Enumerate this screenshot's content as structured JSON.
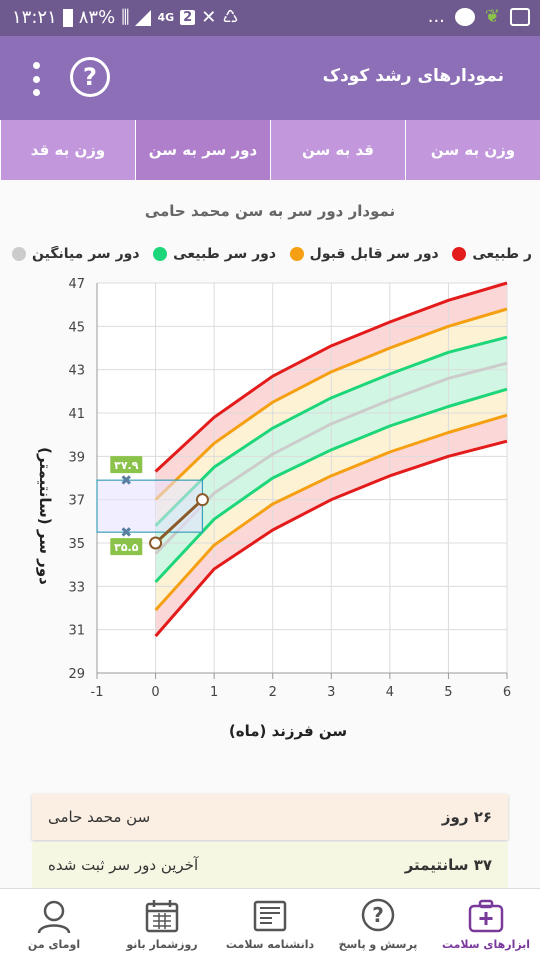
{
  "status_bar": {
    "time": "۱۳:۲۱",
    "battery": "۸۳%",
    "network": "4G",
    "sim_slot": "2",
    "more": "..."
  },
  "app": {
    "title": "نمودارهای رشد کودک",
    "help_label": "?"
  },
  "tabs": [
    {
      "label": "وزن به سن",
      "active": false
    },
    {
      "label": "قد به سن",
      "active": false
    },
    {
      "label": "دور سر به سن",
      "active": true
    },
    {
      "label": "وزن به قد",
      "active": false
    }
  ],
  "chart_data": {
    "type": "line",
    "title": "نمودار دور سر به سن محمد حامی",
    "xlabel": "سن فرزند (ماه)",
    "ylabel": "دور سر (سانتیمتر)",
    "xlim": [
      -1,
      6
    ],
    "ylim": [
      29,
      47
    ],
    "x_ticks": [
      "-1",
      "0",
      "1",
      "2",
      "3",
      "4",
      "5",
      "6"
    ],
    "y_ticks": [
      "29",
      "31",
      "33",
      "35",
      "37",
      "39",
      "41",
      "43",
      "45",
      "47"
    ],
    "grid": true,
    "legend_position": "top",
    "legend": [
      {
        "label": "ر طبیعی",
        "color": "#e31b1b"
      },
      {
        "label": "دور سر قابل قبول",
        "color": "#f5a012"
      },
      {
        "label": "دور سر طبیعی",
        "color": "#1ed67a"
      },
      {
        "label": "دور سر میانگین",
        "color": "#cccccc"
      }
    ],
    "x": [
      0,
      1,
      2,
      3,
      4,
      5,
      6
    ],
    "series": [
      {
        "name": "ر طبیعی",
        "color": "#e31b1b",
        "values": [
          30.7,
          33.8,
          35.6,
          37.0,
          38.1,
          39.0,
          39.7
        ]
      },
      {
        "name": "دور سر قابل قبول",
        "color": "#f5a012",
        "values": [
          31.9,
          34.9,
          36.8,
          38.1,
          39.2,
          40.1,
          40.9
        ]
      },
      {
        "name": "دور سر طبیعی",
        "color": "#1ed67a",
        "values": [
          33.2,
          36.1,
          38.0,
          39.3,
          40.4,
          41.3,
          42.1
        ]
      },
      {
        "name": "دور سر میانگین",
        "color": "#cccccc",
        "values": [
          34.5,
          37.3,
          39.1,
          40.5,
          41.6,
          42.6,
          43.3
        ]
      },
      {
        "name": "دور سر طبیعی",
        "color": "#1ed67a",
        "values": [
          35.8,
          38.5,
          40.3,
          41.7,
          42.8,
          43.8,
          44.5
        ]
      },
      {
        "name": "دور سر قابل قبول",
        "color": "#f5a012",
        "values": [
          37.0,
          39.6,
          41.5,
          42.9,
          44.0,
          45.0,
          45.8
        ]
      },
      {
        "name": "ر طبیعی",
        "color": "#e31b1b",
        "values": [
          38.3,
          40.8,
          42.7,
          44.1,
          45.2,
          46.2,
          47.0
        ]
      }
    ],
    "bands": [
      {
        "between": [
          0,
          1
        ],
        "color": "#fbd0d0"
      },
      {
        "between": [
          1,
          2
        ],
        "color": "#fdf0cc"
      },
      {
        "between": [
          2,
          4
        ],
        "color": "#c9f5de"
      },
      {
        "between": [
          4,
          5
        ],
        "color": "#fdf0cc"
      },
      {
        "between": [
          5,
          6
        ],
        "color": "#fbd0d0"
      }
    ],
    "child_measurements": {
      "x": [
        0,
        0.8
      ],
      "values": [
        35.0,
        37.0
      ],
      "color": "#8b5a2b"
    },
    "range_box": {
      "x": [
        -1,
        0.8
      ],
      "y": [
        35.5,
        37.9
      ],
      "upper_label": "۳۷.۹",
      "lower_label": "۳۵.۵"
    }
  },
  "info_cards": [
    {
      "label": "سن محمد حامی",
      "value": "۲۶ روز"
    },
    {
      "label": "آخرین دور سر ثبت شده",
      "value": "۳۷ سانتیمتر"
    }
  ],
  "bottom_nav": [
    {
      "label": "ابزارهای سلامت",
      "icon": "medical-kit-icon",
      "active": true
    },
    {
      "label": "پرسش و پاسخ",
      "icon": "question-icon",
      "active": false
    },
    {
      "label": "دانشنامه سلامت",
      "icon": "encyclopedia-icon",
      "active": false
    },
    {
      "label": "روزشمار بانو",
      "icon": "calendar-icon",
      "active": false
    },
    {
      "label": "اومای من",
      "icon": "profile-icon",
      "active": false
    }
  ]
}
